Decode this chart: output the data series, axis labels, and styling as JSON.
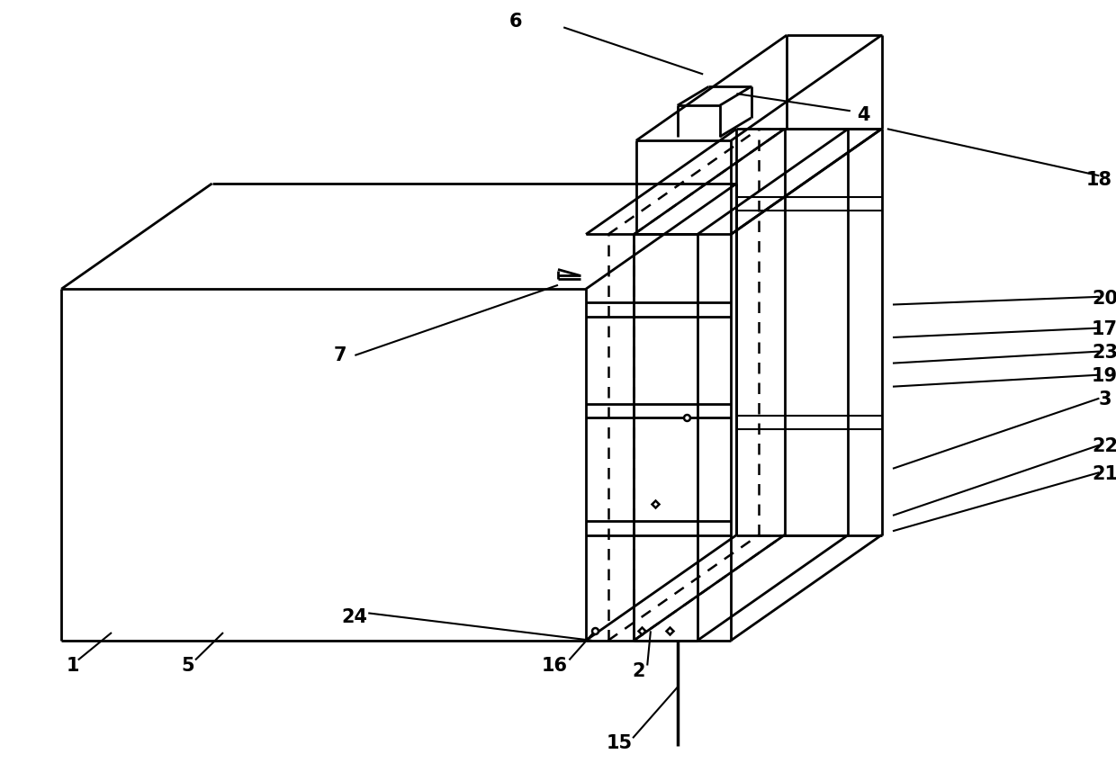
{
  "fig_width": 12.4,
  "fig_height": 8.68,
  "bg_color": "#ffffff",
  "line_color": "#000000",
  "label_fontsize": 15,
  "label_fontweight": "bold"
}
